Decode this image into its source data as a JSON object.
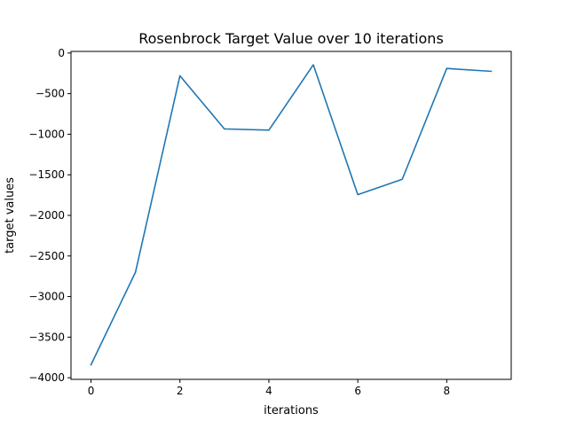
{
  "chart_data": {
    "type": "line",
    "title": "Rosenbrock Target Value over 10 iterations",
    "xlabel": "iterations",
    "ylabel": "target values",
    "x": [
      0,
      1,
      2,
      3,
      4,
      5,
      6,
      7,
      8,
      9
    ],
    "xlim": [
      -0.45,
      9.45
    ],
    "ylim": [
      -4020,
      20
    ],
    "xticks": [
      0,
      2,
      4,
      6,
      8
    ],
    "yticks": [
      0,
      -500,
      -1000,
      -1500,
      -2000,
      -2500,
      -3000,
      -3500,
      -4000
    ],
    "grid": false,
    "series": [
      {
        "color": "#1f77b4",
        "values": [
          -3840,
          -2700,
          -280,
          -935,
          -950,
          -145,
          -1745,
          -1555,
          -190,
          -225
        ]
      }
    ]
  }
}
